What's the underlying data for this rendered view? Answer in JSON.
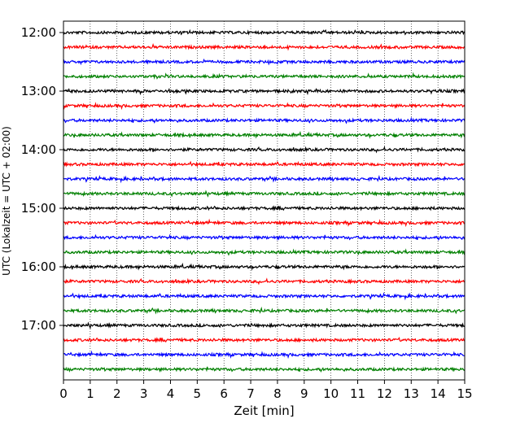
{
  "chart_data": {
    "type": "line",
    "title": "",
    "xlabel": "Zeit  [min]",
    "ylabel": "UTC (Lokalzeit = UTC + 02:00)",
    "xlim": [
      0,
      15
    ],
    "x_ticks": [
      "0",
      "1",
      "2",
      "3",
      "4",
      "5",
      "6",
      "7",
      "8",
      "9",
      "10",
      "11",
      "12",
      "13",
      "14",
      "15"
    ],
    "y_ticks": [
      "12:00",
      "13:00",
      "14:00",
      "15:00",
      "16:00",
      "17:00"
    ],
    "grid": "vertical dotted",
    "legend": "none",
    "trace_colors": [
      "#000000",
      "#ff0000",
      "#0000ff",
      "#008000"
    ],
    "trace_start_times": [
      "12:00",
      "12:15",
      "12:30",
      "12:45",
      "13:00",
      "13:15",
      "13:30",
      "13:45",
      "14:00",
      "14:15",
      "14:30",
      "14:45",
      "15:00",
      "15:15",
      "15:30",
      "15:45",
      "16:00",
      "16:15",
      "16:30",
      "16:45",
      "17:00",
      "17:15",
      "17:30",
      "17:45"
    ],
    "trace_duration_min": 15
  }
}
